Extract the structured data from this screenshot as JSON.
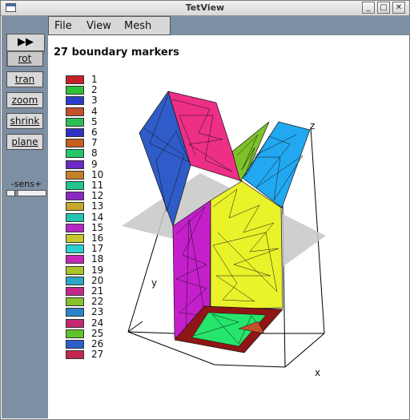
{
  "window": {
    "title": "TetView",
    "buttons": {
      "minimize": "_",
      "maximize": "□",
      "close": "✕"
    }
  },
  "toolbar": {
    "play_icon": "▶▶",
    "tools": [
      {
        "label": "rot",
        "active": true
      },
      {
        "label": "tran",
        "active": false
      },
      {
        "label": "zoom",
        "active": false
      },
      {
        "label": "shrink",
        "active": false
      },
      {
        "label": "plane",
        "active": false
      }
    ],
    "sens_label": "-sens+",
    "sens_value": 0.2
  },
  "menu": {
    "items": [
      "File",
      "View",
      "Mesh"
    ]
  },
  "main": {
    "title": "27 boundary markers",
    "axis_labels": {
      "x": "x",
      "y": "y",
      "z": "z"
    },
    "legend": [
      {
        "label": "1",
        "color": "#c8202a"
      },
      {
        "label": "2",
        "color": "#2bc23a"
      },
      {
        "label": "3",
        "color": "#2a3ec7"
      },
      {
        "label": "4",
        "color": "#c2502a"
      },
      {
        "label": "5",
        "color": "#2bbf55"
      },
      {
        "label": "6",
        "color": "#3030c4"
      },
      {
        "label": "7",
        "color": "#c45f20"
      },
      {
        "label": "8",
        "color": "#22c86a"
      },
      {
        "label": "9",
        "color": "#6a28c4"
      },
      {
        "label": "10",
        "color": "#c4802a"
      },
      {
        "label": "11",
        "color": "#22c48e"
      },
      {
        "label": "12",
        "color": "#8a28c4"
      },
      {
        "label": "13",
        "color": "#c4a82a"
      },
      {
        "label": "14",
        "color": "#22c4b2"
      },
      {
        "label": "15",
        "color": "#b428c4"
      },
      {
        "label": "16",
        "color": "#c8c82a"
      },
      {
        "label": "17",
        "color": "#2ad0d0"
      },
      {
        "label": "18",
        "color": "#c428b8"
      },
      {
        "label": "19",
        "color": "#a8c42a"
      },
      {
        "label": "20",
        "color": "#2aa8c8"
      },
      {
        "label": "21",
        "color": "#c4288c"
      },
      {
        "label": "22",
        "color": "#84c42a"
      },
      {
        "label": "23",
        "color": "#2a84c8"
      },
      {
        "label": "24",
        "color": "#c42870"
      },
      {
        "label": "25",
        "color": "#5ec42a"
      },
      {
        "label": "26",
        "color": "#2a60c8"
      },
      {
        "label": "27",
        "color": "#c42850"
      }
    ]
  },
  "colors": {
    "panel": "#7d8fa3",
    "pink_face": "#ee2f87",
    "blue_face": "#2f5cc8",
    "cyan_face": "#22a8f0",
    "yellow_face": "#eaf22a",
    "magenta_face": "#c51fcc",
    "dark_red_face": "#8f1616",
    "green_face": "#25e56b",
    "olive_face": "#7ec22a",
    "cut_plane": "#c7c7c7"
  }
}
